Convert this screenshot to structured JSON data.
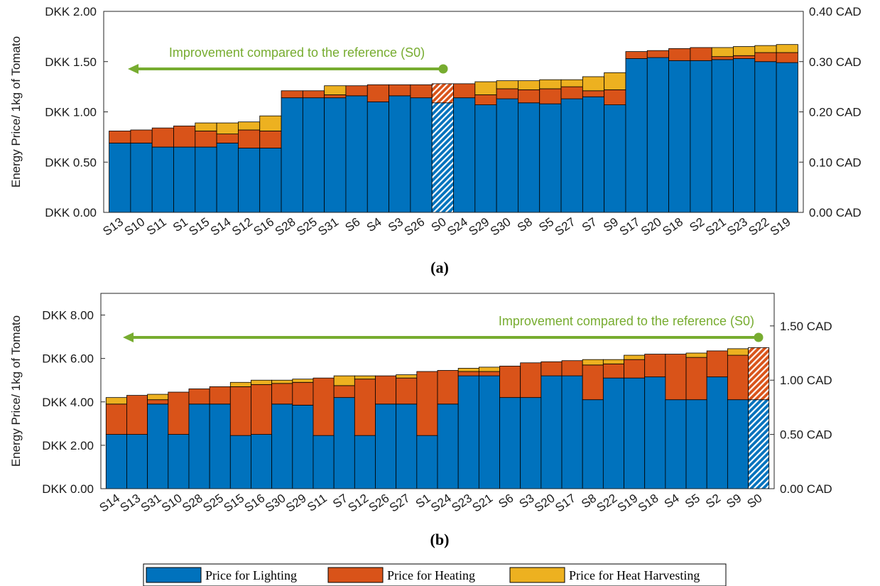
{
  "legend": {
    "items": [
      {
        "label": "Price for Lighting",
        "color": "#0072BD"
      },
      {
        "label": "Price for Heating",
        "color": "#D95319"
      },
      {
        "label": "Price for Heat Harvesting",
        "color": "#EDB120"
      }
    ]
  },
  "colors": {
    "lighting": "#0072BD",
    "heating": "#D95319",
    "harvest": "#EDB120",
    "annotation": "#77AC30"
  },
  "chart_data": [
    {
      "type": "bar",
      "stacked": true,
      "caption": "(a)",
      "ylabel": "Energy Price/ 1kg of Tomato",
      "ylim": [
        0,
        2
      ],
      "yticks": [
        "DKK 0.00",
        "DKK 0.50",
        "DKK 1.00",
        "DKK 1.50",
        "DKK 2.00"
      ],
      "y2lim": [
        0,
        0.4
      ],
      "y2ticks": [
        "0.00 CAD",
        "0.10 CAD",
        "0.20 CAD",
        "0.30 CAD",
        "0.40 CAD"
      ],
      "annotation": "Improvement compared to the reference (S0)",
      "reference": "S0",
      "categories": [
        "S13",
        "S10",
        "S11",
        "S1",
        "S15",
        "S14",
        "S12",
        "S16",
        "S28",
        "S25",
        "S31",
        "S6",
        "S4",
        "S3",
        "S26",
        "S0",
        "S24",
        "S29",
        "S30",
        "S8",
        "S5",
        "S27",
        "S7",
        "S9",
        "S17",
        "S20",
        "S18",
        "S2",
        "S21",
        "S23",
        "S22",
        "S19"
      ],
      "series": [
        {
          "name": "Price for Lighting",
          "values": [
            0.69,
            0.69,
            0.65,
            0.65,
            0.65,
            0.69,
            0.64,
            0.64,
            1.14,
            1.14,
            1.14,
            1.16,
            1.1,
            1.16,
            1.14,
            1.09,
            1.14,
            1.07,
            1.13,
            1.09,
            1.08,
            1.13,
            1.15,
            1.07,
            1.53,
            1.54,
            1.51,
            1.51,
            1.52,
            1.53,
            1.5,
            1.49
          ]
        },
        {
          "name": "Price for Heating",
          "values": [
            0.12,
            0.13,
            0.19,
            0.21,
            0.16,
            0.09,
            0.18,
            0.17,
            0.07,
            0.07,
            0.03,
            0.1,
            0.17,
            0.11,
            0.13,
            0.19,
            0.14,
            0.1,
            0.1,
            0.13,
            0.15,
            0.12,
            0.06,
            0.15,
            0.07,
            0.07,
            0.12,
            0.13,
            0.03,
            0.03,
            0.09,
            0.1
          ]
        },
        {
          "name": "Price for Heat Harvesting",
          "values": [
            0,
            0,
            0,
            0,
            0.08,
            0.11,
            0.08,
            0.15,
            0,
            0,
            0.09,
            0,
            0,
            0,
            0,
            0,
            0,
            0.13,
            0.08,
            0.09,
            0.09,
            0.07,
            0.14,
            0.17,
            0,
            0,
            0,
            0,
            0.09,
            0.09,
            0.07,
            0.08
          ]
        }
      ]
    },
    {
      "type": "bar",
      "stacked": true,
      "caption": "(b)",
      "ylabel": "Energy Price/ 1kg of Tomato",
      "ylim": [
        0,
        9
      ],
      "yticks": [
        "DKK 0.00",
        "DKK 2.00",
        "DKK 4.00",
        "DKK 6.00",
        "DKK 8.00"
      ],
      "y2lim": [
        0,
        1.8
      ],
      "y2ticks": [
        "0.00 CAD",
        "0.50 CAD",
        "1.00 CAD",
        "1.50 CAD"
      ],
      "annotation": "Improvement compared to the reference (S0)",
      "reference": "S0",
      "categories": [
        "S14",
        "S13",
        "S31",
        "S10",
        "S28",
        "S25",
        "S15",
        "S16",
        "S30",
        "S29",
        "S11",
        "S7",
        "S12",
        "S26",
        "S27",
        "S1",
        "S24",
        "S23",
        "S21",
        "S6",
        "S3",
        "S20",
        "S17",
        "S8",
        "S22",
        "S19",
        "S18",
        "S4",
        "S5",
        "S2",
        "S9",
        "S0"
      ],
      "series": [
        {
          "name": "Price for Lighting",
          "values": [
            2.5,
            2.5,
            3.9,
            2.5,
            3.9,
            3.9,
            2.45,
            2.5,
            3.9,
            3.85,
            2.45,
            4.2,
            2.45,
            3.9,
            3.9,
            2.45,
            3.9,
            5.2,
            5.2,
            4.2,
            4.2,
            5.2,
            5.2,
            4.1,
            5.1,
            5.1,
            5.15,
            4.1,
            4.1,
            5.15,
            4.1,
            4.1
          ]
        },
        {
          "name": "Price for Heating",
          "values": [
            1.4,
            1.8,
            0.2,
            1.95,
            0.7,
            0.8,
            2.25,
            2.3,
            0.95,
            1.05,
            2.65,
            0.55,
            2.6,
            1.3,
            1.2,
            2.95,
            1.55,
            0.2,
            0.2,
            1.45,
            1.6,
            0.65,
            0.7,
            1.6,
            0.65,
            0.85,
            1.05,
            2.1,
            1.95,
            1.2,
            2.05,
            2.4
          ]
        },
        {
          "name": "Price for Heat Harvesting",
          "values": [
            0.3,
            0,
            0.25,
            0,
            0,
            0,
            0.2,
            0.2,
            0.15,
            0.15,
            0,
            0.45,
            0.15,
            0,
            0.15,
            0,
            0,
            0.15,
            0.2,
            0,
            0,
            0,
            0,
            0.25,
            0.2,
            0.2,
            0,
            0,
            0.2,
            0,
            0.3,
            0
          ]
        }
      ]
    }
  ]
}
